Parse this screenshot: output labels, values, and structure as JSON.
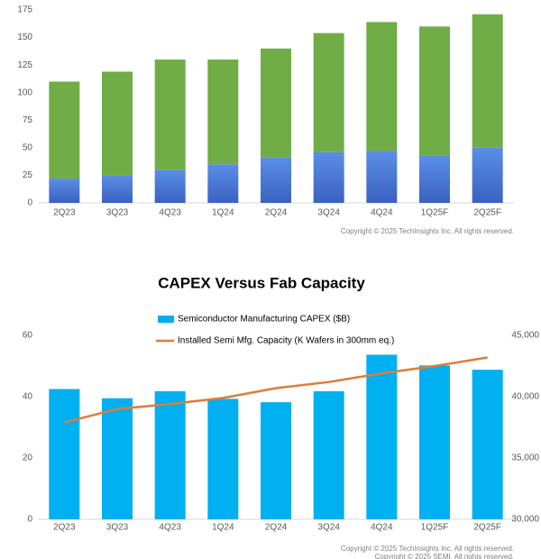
{
  "chart_data": [
    {
      "type": "bar",
      "stacked": true,
      "categories": [
        "2Q23",
        "3Q23",
        "4Q23",
        "1Q24",
        "2Q24",
        "3Q24",
        "4Q24",
        "1Q25F",
        "2Q25F"
      ],
      "series": [
        {
          "color": "#4472c4",
          "values": [
            22,
            25,
            30,
            35,
            41,
            46,
            47,
            43,
            50
          ]
        },
        {
          "color": "#70ad47",
          "values": [
            88,
            94,
            100,
            95,
            99,
            108,
            117,
            117,
            121
          ]
        }
      ],
      "ylim": [
        0,
        175
      ],
      "yticks": [
        0,
        25,
        50,
        75,
        100,
        125,
        150,
        175
      ],
      "grid": false,
      "annotations": [
        "Copyright © 2025 TechInsights Inc.  All rights reserved."
      ]
    },
    {
      "type": "combo",
      "title": "CAPEX Versus Fab Capacity",
      "categories": [
        "2Q23",
        "3Q23",
        "4Q23",
        "1Q24",
        "2Q24",
        "3Q24",
        "4Q24",
        "1Q25F",
        "2Q25F"
      ],
      "series": [
        {
          "name": "Semiconductor Manufacturing CAPEX ($B)",
          "kind": "bar",
          "color": "#00b0f0",
          "values": [
            42.5,
            39.5,
            41.8,
            39.3,
            38.2,
            41.8,
            53.7,
            50.2,
            48.8
          ]
        },
        {
          "name": "Installed Semi Mfg. Capacity (K Wafers in 300mm eq.)",
          "kind": "line",
          "axis": "y2",
          "color": "#e07b39",
          "values": [
            37900,
            39000,
            39400,
            39900,
            40700,
            41200,
            41900,
            42500,
            43200
          ]
        }
      ],
      "ylim": [
        0,
        60
      ],
      "yticks": [
        0,
        20,
        40,
        60
      ],
      "y2lim": [
        30000,
        45000
      ],
      "y2ticks": [
        {
          "value": 30000,
          "label": "30,000"
        },
        {
          "value": 35000,
          "label": "35,000"
        },
        {
          "value": 40000,
          "label": "40,000"
        },
        {
          "value": 45000,
          "label": "45,000"
        }
      ],
      "annotations": [
        "Copyright © 2025 TechInsights Inc.  All rights reserved.",
        "Copyright © 2025 SEMI. All rights reserved."
      ]
    }
  ]
}
